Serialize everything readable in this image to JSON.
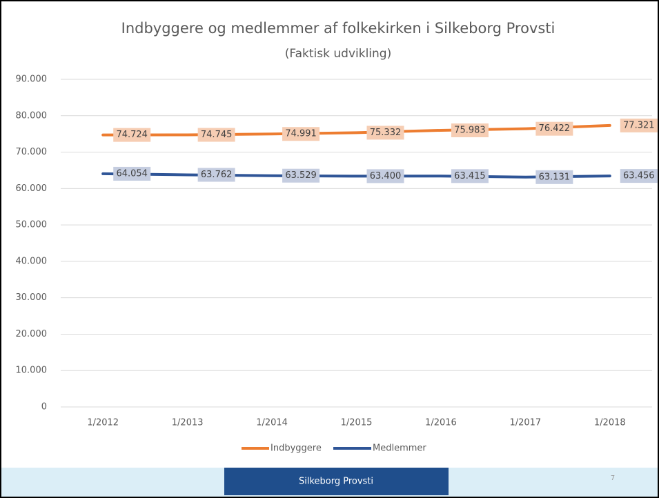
{
  "chart_data": {
    "type": "line",
    "title": "Indbyggere og medlemmer af folkekirken i Silkeborg Provsti",
    "subtitle": "(Faktisk udvikling)",
    "categories": [
      "1/2012",
      "1/2013",
      "1/2014",
      "1/2015",
      "1/2016",
      "1/2017",
      "1/2018"
    ],
    "series": [
      {
        "name": "Indbyggere",
        "color": "#ed7d31",
        "label_bg": "#f6cdb3",
        "values": [
          74724,
          74745,
          74991,
          75332,
          75983,
          76422,
          77321
        ],
        "value_labels": [
          "74.724",
          "74.745",
          "74.991",
          "75.332",
          "75.983",
          "76.422",
          "77.321"
        ]
      },
      {
        "name": "Medlemmer",
        "color": "#2f5597",
        "label_bg": "#c5cde0",
        "values": [
          64054,
          63762,
          63529,
          63400,
          63415,
          63131,
          63456
        ],
        "value_labels": [
          "64.054",
          "63.762",
          "63.529",
          "63.400",
          "63.415",
          "63.131",
          "63.456"
        ]
      }
    ],
    "ylim": [
      0,
      90000
    ],
    "yticks": [
      0,
      {
        "value": 10000,
        "label": "10.000"
      },
      {
        "value": 20000,
        "label": "20.000"
      },
      {
        "value": 30000,
        "label": "30.000"
      },
      {
        "value": 40000,
        "label": "40.000"
      },
      {
        "value": 50000,
        "label": "50.000"
      },
      {
        "value": 60000,
        "label": "60.000"
      },
      {
        "value": 70000,
        "label": "70.000"
      },
      {
        "value": 80000,
        "label": "80.000"
      },
      {
        "value": 90000,
        "label": "90.000"
      }
    ],
    "grid": true,
    "legend": "bottom"
  },
  "footer": {
    "text": "Silkeborg Provsti",
    "page": "7"
  }
}
